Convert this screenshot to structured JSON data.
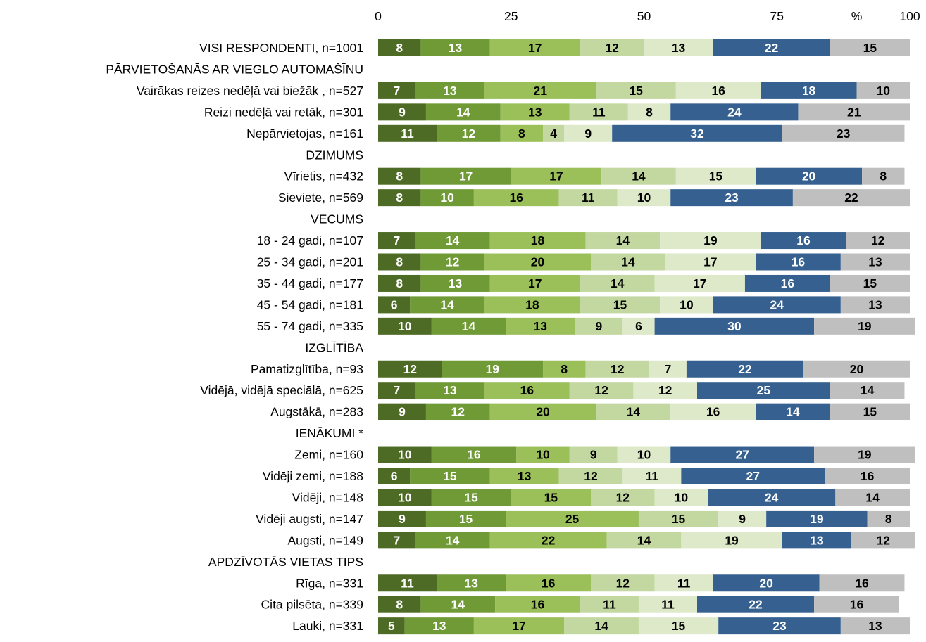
{
  "chart_data": {
    "type": "bar",
    "orientation": "horizontal",
    "stacked": true,
    "percent_unit_label": "%",
    "x_ticks": [
      "0",
      "25",
      "50",
      "75",
      "100"
    ],
    "xlim": [
      0,
      100
    ],
    "grid": false,
    "legend": "none",
    "series_colors": [
      "#4e6b25",
      "#6f9a36",
      "#9bbf59",
      "#c3d7a0",
      "#dde9c9",
      "#35608f",
      "#bfbfbf"
    ],
    "label_colors": [
      "#ffffff",
      "#ffffff",
      "#000000",
      "#000000",
      "#000000",
      "#ffffff",
      "#000000"
    ],
    "rows": [
      {
        "label": "VISI RESPONDENTI, n=1001",
        "values": [
          8,
          13,
          17,
          12,
          13,
          22,
          15
        ]
      },
      {
        "label": "PĀRVIETOŠANĀS AR VIEGLO AUTOMAŠĪNU",
        "header": true
      },
      {
        "label": "Vairākas reizes nedēļā vai biežāk , n=527",
        "values": [
          7,
          13,
          21,
          15,
          16,
          18,
          10
        ]
      },
      {
        "label": "Reizi nedēļā vai retāk, n=301",
        "values": [
          9,
          14,
          13,
          11,
          8,
          24,
          21
        ]
      },
      {
        "label": "Nepārvietojas, n=161",
        "values": [
          11,
          12,
          8,
          4,
          9,
          32,
          23
        ]
      },
      {
        "label": "DZIMUMS",
        "header": true
      },
      {
        "label": "Vīrietis, n=432",
        "values": [
          8,
          17,
          17,
          14,
          15,
          20,
          8
        ]
      },
      {
        "label": "Sieviete, n=569",
        "values": [
          8,
          10,
          16,
          11,
          10,
          23,
          22
        ]
      },
      {
        "label": "VECUMS",
        "header": true
      },
      {
        "label": "18 - 24 gadi, n=107",
        "values": [
          7,
          14,
          18,
          14,
          19,
          16,
          12
        ]
      },
      {
        "label": "25 - 34 gadi, n=201",
        "values": [
          8,
          12,
          20,
          14,
          17,
          16,
          13
        ]
      },
      {
        "label": "35 - 44 gadi, n=177",
        "values": [
          8,
          13,
          17,
          14,
          17,
          16,
          15
        ]
      },
      {
        "label": "45 - 54 gadi, n=181",
        "values": [
          6,
          14,
          18,
          15,
          10,
          24,
          13
        ]
      },
      {
        "label": "55 - 74 gadi, n=335",
        "values": [
          10,
          14,
          13,
          9,
          6,
          30,
          19
        ]
      },
      {
        "label": "IZGLĪTĪBA",
        "header": true
      },
      {
        "label": "Pamatizglītība, n=93",
        "values": [
          12,
          19,
          8,
          12,
          7,
          22,
          20
        ]
      },
      {
        "label": "Vidējā, vidējā speciālā, n=625",
        "values": [
          7,
          13,
          16,
          12,
          12,
          25,
          14
        ]
      },
      {
        "label": "Augstākā, n=283",
        "values": [
          9,
          12,
          20,
          14,
          16,
          14,
          15
        ]
      },
      {
        "label": "IENĀKUMI *",
        "header": true
      },
      {
        "label": "Zemi, n=160",
        "values": [
          10,
          16,
          10,
          9,
          10,
          27,
          19
        ]
      },
      {
        "label": "Vidēji zemi, n=188",
        "values": [
          6,
          15,
          13,
          12,
          11,
          27,
          16
        ]
      },
      {
        "label": "Vidēji, n=148",
        "values": [
          10,
          15,
          15,
          12,
          10,
          24,
          14
        ]
      },
      {
        "label": "Vidēji augsti, n=147",
        "values": [
          9,
          15,
          25,
          15,
          9,
          19,
          8
        ]
      },
      {
        "label": "Augsti, n=149",
        "values": [
          7,
          14,
          22,
          14,
          19,
          13,
          12
        ]
      },
      {
        "label": "APDZĪVOTĀS VIETAS TIPS",
        "header": true
      },
      {
        "label": "Rīga, n=331",
        "values": [
          11,
          13,
          16,
          12,
          11,
          20,
          16
        ]
      },
      {
        "label": "Cita pilsēta, n=339",
        "values": [
          8,
          14,
          16,
          11,
          11,
          22,
          16
        ]
      },
      {
        "label": "Lauki, n=331",
        "values": [
          5,
          13,
          17,
          14,
          15,
          23,
          13
        ]
      }
    ]
  }
}
